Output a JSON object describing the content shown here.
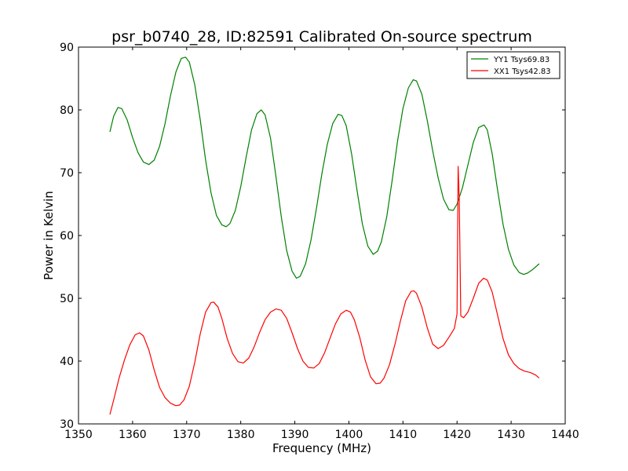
{
  "chart_data": {
    "type": "line",
    "title": "psr_b0740_28, ID:82591 Calibrated On-source spectrum",
    "xlabel": "Frequency (MHz)",
    "ylabel": "Power in Kelvin",
    "xlim": [
      1350,
      1440
    ],
    "ylim": [
      30,
      90
    ],
    "xticks": [
      1350,
      1360,
      1370,
      1380,
      1390,
      1400,
      1410,
      1420,
      1430,
      1440
    ],
    "yticks": [
      30,
      40,
      50,
      60,
      70,
      80,
      90
    ],
    "grid": false,
    "legend_position": "top-right",
    "series": [
      {
        "name": "YY1 Tsys69.83",
        "color": "#008000",
        "points": [
          [
            1355.8,
            76.5
          ],
          [
            1356.5,
            79.0
          ],
          [
            1357.3,
            80.4
          ],
          [
            1358.0,
            80.2
          ],
          [
            1359.0,
            78.4
          ],
          [
            1360.0,
            75.6
          ],
          [
            1361.0,
            73.2
          ],
          [
            1362.0,
            71.7
          ],
          [
            1363.0,
            71.3
          ],
          [
            1364.0,
            72.0
          ],
          [
            1365.0,
            74.2
          ],
          [
            1366.0,
            77.8
          ],
          [
            1367.0,
            82.2
          ],
          [
            1368.0,
            86.0
          ],
          [
            1369.0,
            88.2
          ],
          [
            1369.8,
            88.4
          ],
          [
            1370.5,
            87.6
          ],
          [
            1371.5,
            84.0
          ],
          [
            1372.5,
            78.5
          ],
          [
            1373.5,
            72.0
          ],
          [
            1374.5,
            66.8
          ],
          [
            1375.5,
            63.2
          ],
          [
            1376.5,
            61.7
          ],
          [
            1377.3,
            61.4
          ],
          [
            1378.0,
            61.9
          ],
          [
            1379.0,
            64.0
          ],
          [
            1380.0,
            67.8
          ],
          [
            1381.0,
            72.5
          ],
          [
            1382.0,
            76.8
          ],
          [
            1383.0,
            79.4
          ],
          [
            1383.8,
            80.0
          ],
          [
            1384.5,
            79.2
          ],
          [
            1385.5,
            75.5
          ],
          [
            1386.5,
            69.5
          ],
          [
            1387.5,
            63.0
          ],
          [
            1388.5,
            57.6
          ],
          [
            1389.5,
            54.3
          ],
          [
            1390.3,
            53.2
          ],
          [
            1391.0,
            53.5
          ],
          [
            1392.0,
            55.5
          ],
          [
            1393.0,
            59.3
          ],
          [
            1394.0,
            64.3
          ],
          [
            1395.0,
            69.8
          ],
          [
            1396.0,
            74.5
          ],
          [
            1397.0,
            77.8
          ],
          [
            1398.0,
            79.3
          ],
          [
            1398.7,
            79.1
          ],
          [
            1399.5,
            77.5
          ],
          [
            1400.5,
            73.0
          ],
          [
            1401.5,
            67.2
          ],
          [
            1402.5,
            61.8
          ],
          [
            1403.5,
            58.3
          ],
          [
            1404.5,
            57.0
          ],
          [
            1405.3,
            57.5
          ],
          [
            1406.0,
            59.0
          ],
          [
            1407.0,
            63.0
          ],
          [
            1408.0,
            68.8
          ],
          [
            1409.0,
            75.0
          ],
          [
            1410.0,
            80.2
          ],
          [
            1411.0,
            83.5
          ],
          [
            1411.9,
            84.8
          ],
          [
            1412.5,
            84.6
          ],
          [
            1413.5,
            82.5
          ],
          [
            1414.5,
            78.3
          ],
          [
            1415.5,
            73.5
          ],
          [
            1416.5,
            69.2
          ],
          [
            1417.5,
            65.8
          ],
          [
            1418.5,
            64.1
          ],
          [
            1419.3,
            64.0
          ],
          [
            1420.0,
            65.0
          ],
          [
            1421.0,
            67.6
          ],
          [
            1422.0,
            71.2
          ],
          [
            1423.0,
            74.8
          ],
          [
            1424.0,
            77.2
          ],
          [
            1425.0,
            77.6
          ],
          [
            1425.6,
            76.8
          ],
          [
            1426.5,
            73.0
          ],
          [
            1427.5,
            67.2
          ],
          [
            1428.5,
            61.8
          ],
          [
            1429.5,
            57.8
          ],
          [
            1430.5,
            55.3
          ],
          [
            1431.5,
            54.1
          ],
          [
            1432.3,
            53.8
          ],
          [
            1433.0,
            54.0
          ],
          [
            1434.0,
            54.6
          ],
          [
            1435.2,
            55.5
          ]
        ]
      },
      {
        "name": "XX1 Tsys42.83",
        "color": "#ff0000",
        "points": [
          [
            1355.8,
            31.5
          ],
          [
            1356.5,
            33.8
          ],
          [
            1357.5,
            37.3
          ],
          [
            1358.5,
            40.2
          ],
          [
            1359.5,
            42.6
          ],
          [
            1360.5,
            44.2
          ],
          [
            1361.3,
            44.5
          ],
          [
            1362.0,
            44.0
          ],
          [
            1363.0,
            41.8
          ],
          [
            1364.0,
            38.6
          ],
          [
            1365.0,
            35.8
          ],
          [
            1366.0,
            34.2
          ],
          [
            1367.0,
            33.3
          ],
          [
            1368.0,
            32.9
          ],
          [
            1368.7,
            33.0
          ],
          [
            1369.5,
            33.8
          ],
          [
            1370.5,
            36.0
          ],
          [
            1371.5,
            39.8
          ],
          [
            1372.5,
            44.3
          ],
          [
            1373.5,
            47.8
          ],
          [
            1374.5,
            49.3
          ],
          [
            1375.0,
            49.4
          ],
          [
            1375.8,
            48.6
          ],
          [
            1376.5,
            46.8
          ],
          [
            1377.5,
            43.6
          ],
          [
            1378.5,
            41.2
          ],
          [
            1379.5,
            39.9
          ],
          [
            1380.5,
            39.7
          ],
          [
            1381.5,
            40.5
          ],
          [
            1382.5,
            42.3
          ],
          [
            1383.5,
            44.6
          ],
          [
            1384.5,
            46.6
          ],
          [
            1385.5,
            47.8
          ],
          [
            1386.5,
            48.3
          ],
          [
            1387.5,
            48.1
          ],
          [
            1388.5,
            46.8
          ],
          [
            1389.5,
            44.5
          ],
          [
            1390.5,
            42.0
          ],
          [
            1391.5,
            40.0
          ],
          [
            1392.5,
            39.0
          ],
          [
            1393.5,
            38.9
          ],
          [
            1394.5,
            39.6
          ],
          [
            1395.5,
            41.3
          ],
          [
            1396.5,
            43.6
          ],
          [
            1397.5,
            45.9
          ],
          [
            1398.5,
            47.5
          ],
          [
            1399.5,
            48.1
          ],
          [
            1400.3,
            47.8
          ],
          [
            1401.0,
            46.6
          ],
          [
            1402.0,
            43.8
          ],
          [
            1403.0,
            40.2
          ],
          [
            1404.0,
            37.5
          ],
          [
            1405.0,
            36.4
          ],
          [
            1405.8,
            36.5
          ],
          [
            1406.5,
            37.3
          ],
          [
            1407.5,
            39.4
          ],
          [
            1408.5,
            42.6
          ],
          [
            1409.5,
            46.3
          ],
          [
            1410.5,
            49.6
          ],
          [
            1411.5,
            51.1
          ],
          [
            1412.0,
            51.2
          ],
          [
            1412.5,
            50.8
          ],
          [
            1413.5,
            48.6
          ],
          [
            1414.5,
            45.3
          ],
          [
            1415.5,
            42.7
          ],
          [
            1416.5,
            42.0
          ],
          [
            1417.5,
            42.5
          ],
          [
            1418.5,
            43.8
          ],
          [
            1419.5,
            45.2
          ],
          [
            1420.0,
            47.5
          ],
          [
            1420.2,
            71.0
          ],
          [
            1420.4,
            66.0
          ],
          [
            1420.7,
            47.2
          ],
          [
            1421.2,
            46.9
          ],
          [
            1422.0,
            47.8
          ],
          [
            1423.0,
            50.0
          ],
          [
            1424.0,
            52.4
          ],
          [
            1424.9,
            53.2
          ],
          [
            1425.6,
            52.9
          ],
          [
            1426.5,
            51.0
          ],
          [
            1427.5,
            47.3
          ],
          [
            1428.5,
            43.6
          ],
          [
            1429.5,
            41.0
          ],
          [
            1430.5,
            39.6
          ],
          [
            1431.5,
            38.8
          ],
          [
            1432.5,
            38.4
          ],
          [
            1433.5,
            38.2
          ],
          [
            1434.5,
            37.8
          ],
          [
            1435.2,
            37.3
          ]
        ]
      }
    ]
  }
}
